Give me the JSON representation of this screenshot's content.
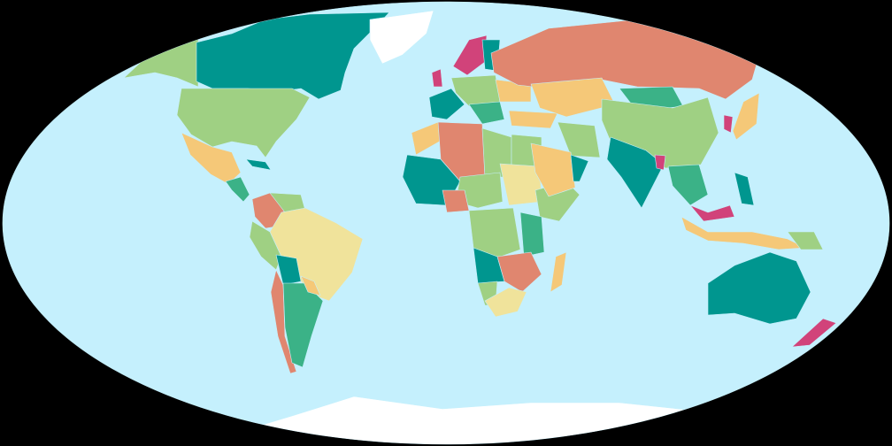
{
  "map": {
    "projection": "robinson-like-elliptical",
    "background": "#000000",
    "palette": {
      "ocean": "#c5f0fd",
      "ice": "#ffffff",
      "teal": "#00968f",
      "salmon": "#e0866f",
      "green": "#9fd083",
      "mint": "#3bb287",
      "yellow": "#f5c878",
      "pale": "#f0e39b",
      "magenta": "#d1437a"
    }
  }
}
